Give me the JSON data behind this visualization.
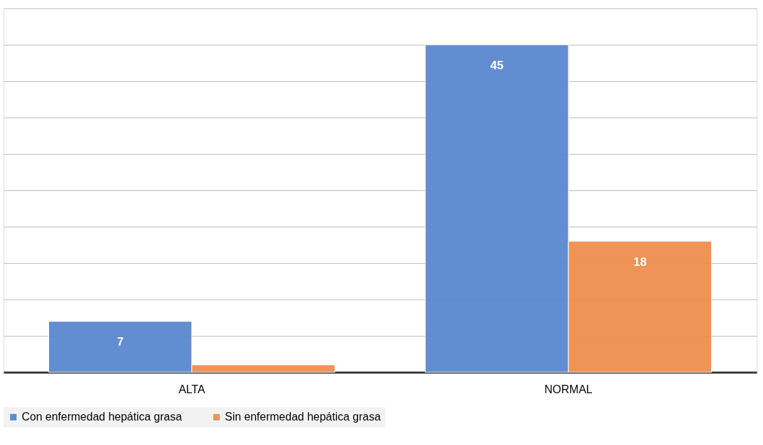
{
  "chart_data": {
    "type": "bar",
    "categories": [
      "ALTA",
      "NORMAL"
    ],
    "series": [
      {
        "name": "Con enfermedad hepática grasa",
        "color": "#5b87cf",
        "values": [
          7,
          45
        ],
        "value_labels": [
          "7",
          "45"
        ]
      },
      {
        "name": "Sin enfermedad hepática grasa",
        "color": "#ef8e4e",
        "values": [
          1,
          18
        ],
        "value_labels": [
          null,
          "18"
        ]
      }
    ],
    "ylim": [
      0,
      50
    ],
    "yticks": [
      {
        "value": 0,
        "label": null
      },
      {
        "value": 5,
        "label": null
      },
      {
        "value": 10,
        "label": null
      },
      {
        "value": 15,
        "label": null
      },
      {
        "value": 20,
        "label": null
      },
      {
        "value": 25,
        "label": null
      },
      {
        "value": 30,
        "label": null
      },
      {
        "value": 35,
        "label": null
      },
      {
        "value": 40,
        "label": null
      },
      {
        "value": 45,
        "label": null
      },
      {
        "value": 50,
        "label": null
      }
    ],
    "grid": "y",
    "legend": "bottom",
    "tick_labels": "x"
  }
}
